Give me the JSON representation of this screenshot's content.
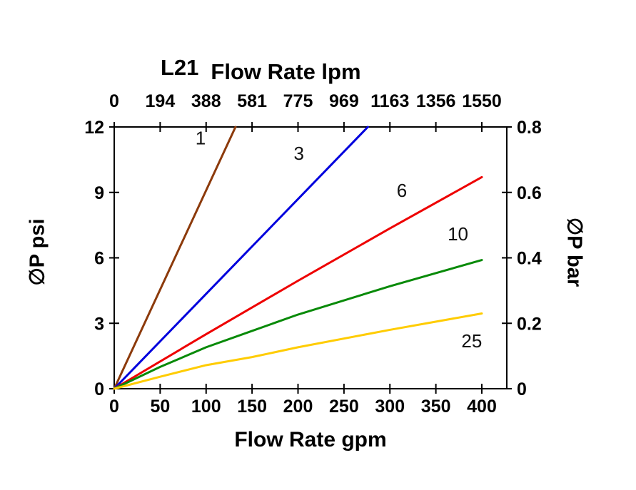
{
  "chart_data": {
    "type": "line",
    "title": "L21",
    "xlabel_top": "Flow Rate lpm",
    "xlabel_bottom": "Flow Rate gpm",
    "ylabel_left": "∅P psi",
    "ylabel_right": "∅P bar",
    "x_ticks_gpm": [
      0,
      50,
      100,
      150,
      200,
      250,
      300,
      350,
      400
    ],
    "x_ticks_lpm": [
      0,
      194,
      388,
      581,
      775,
      969,
      1163,
      1356,
      1550
    ],
    "y_ticks_psi": [
      0,
      3,
      6,
      9,
      12
    ],
    "y_ticks_bar": [
      0,
      0.2,
      0.4,
      0.6,
      0.8
    ],
    "xlim_gpm": [
      0,
      427
    ],
    "ylim_psi": [
      0,
      12
    ],
    "ylim_bar": [
      0,
      0.8
    ],
    "grid": false,
    "background_color": "#ffffff",
    "axis_color": "#000000",
    "series": [
      {
        "name": "1",
        "color": "#8C3A0B",
        "points_gpm_psi": [
          [
            0,
            0
          ],
          [
            132,
            12
          ]
        ],
        "label_at": [
          94,
          11.2
        ]
      },
      {
        "name": "3",
        "color": "#0000DD",
        "points_gpm_psi": [
          [
            0,
            0
          ],
          [
            276,
            12
          ]
        ],
        "label_at": [
          201,
          10.5
        ]
      },
      {
        "name": "6",
        "color": "#EE0000",
        "points_gpm_psi": [
          [
            0,
            0
          ],
          [
            100,
            2.5
          ],
          [
            200,
            4.95
          ],
          [
            300,
            7.35
          ],
          [
            400,
            9.7
          ]
        ],
        "label_at": [
          313,
          8.8
        ]
      },
      {
        "name": "10",
        "color": "#088A08",
        "points_gpm_psi": [
          [
            0,
            0
          ],
          [
            50,
            1.0
          ],
          [
            100,
            1.9
          ],
          [
            150,
            2.65
          ],
          [
            200,
            3.4
          ],
          [
            300,
            4.7
          ],
          [
            400,
            5.9
          ]
        ],
        "label_at": [
          374,
          6.8
        ]
      },
      {
        "name": "25",
        "color": "#FFCC00",
        "points_gpm_psi": [
          [
            0,
            0
          ],
          [
            50,
            0.55
          ],
          [
            100,
            1.08
          ],
          [
            150,
            1.45
          ],
          [
            200,
            1.9
          ],
          [
            300,
            2.7
          ],
          [
            400,
            3.45
          ]
        ],
        "label_at": [
          389,
          1.9
        ]
      }
    ]
  }
}
